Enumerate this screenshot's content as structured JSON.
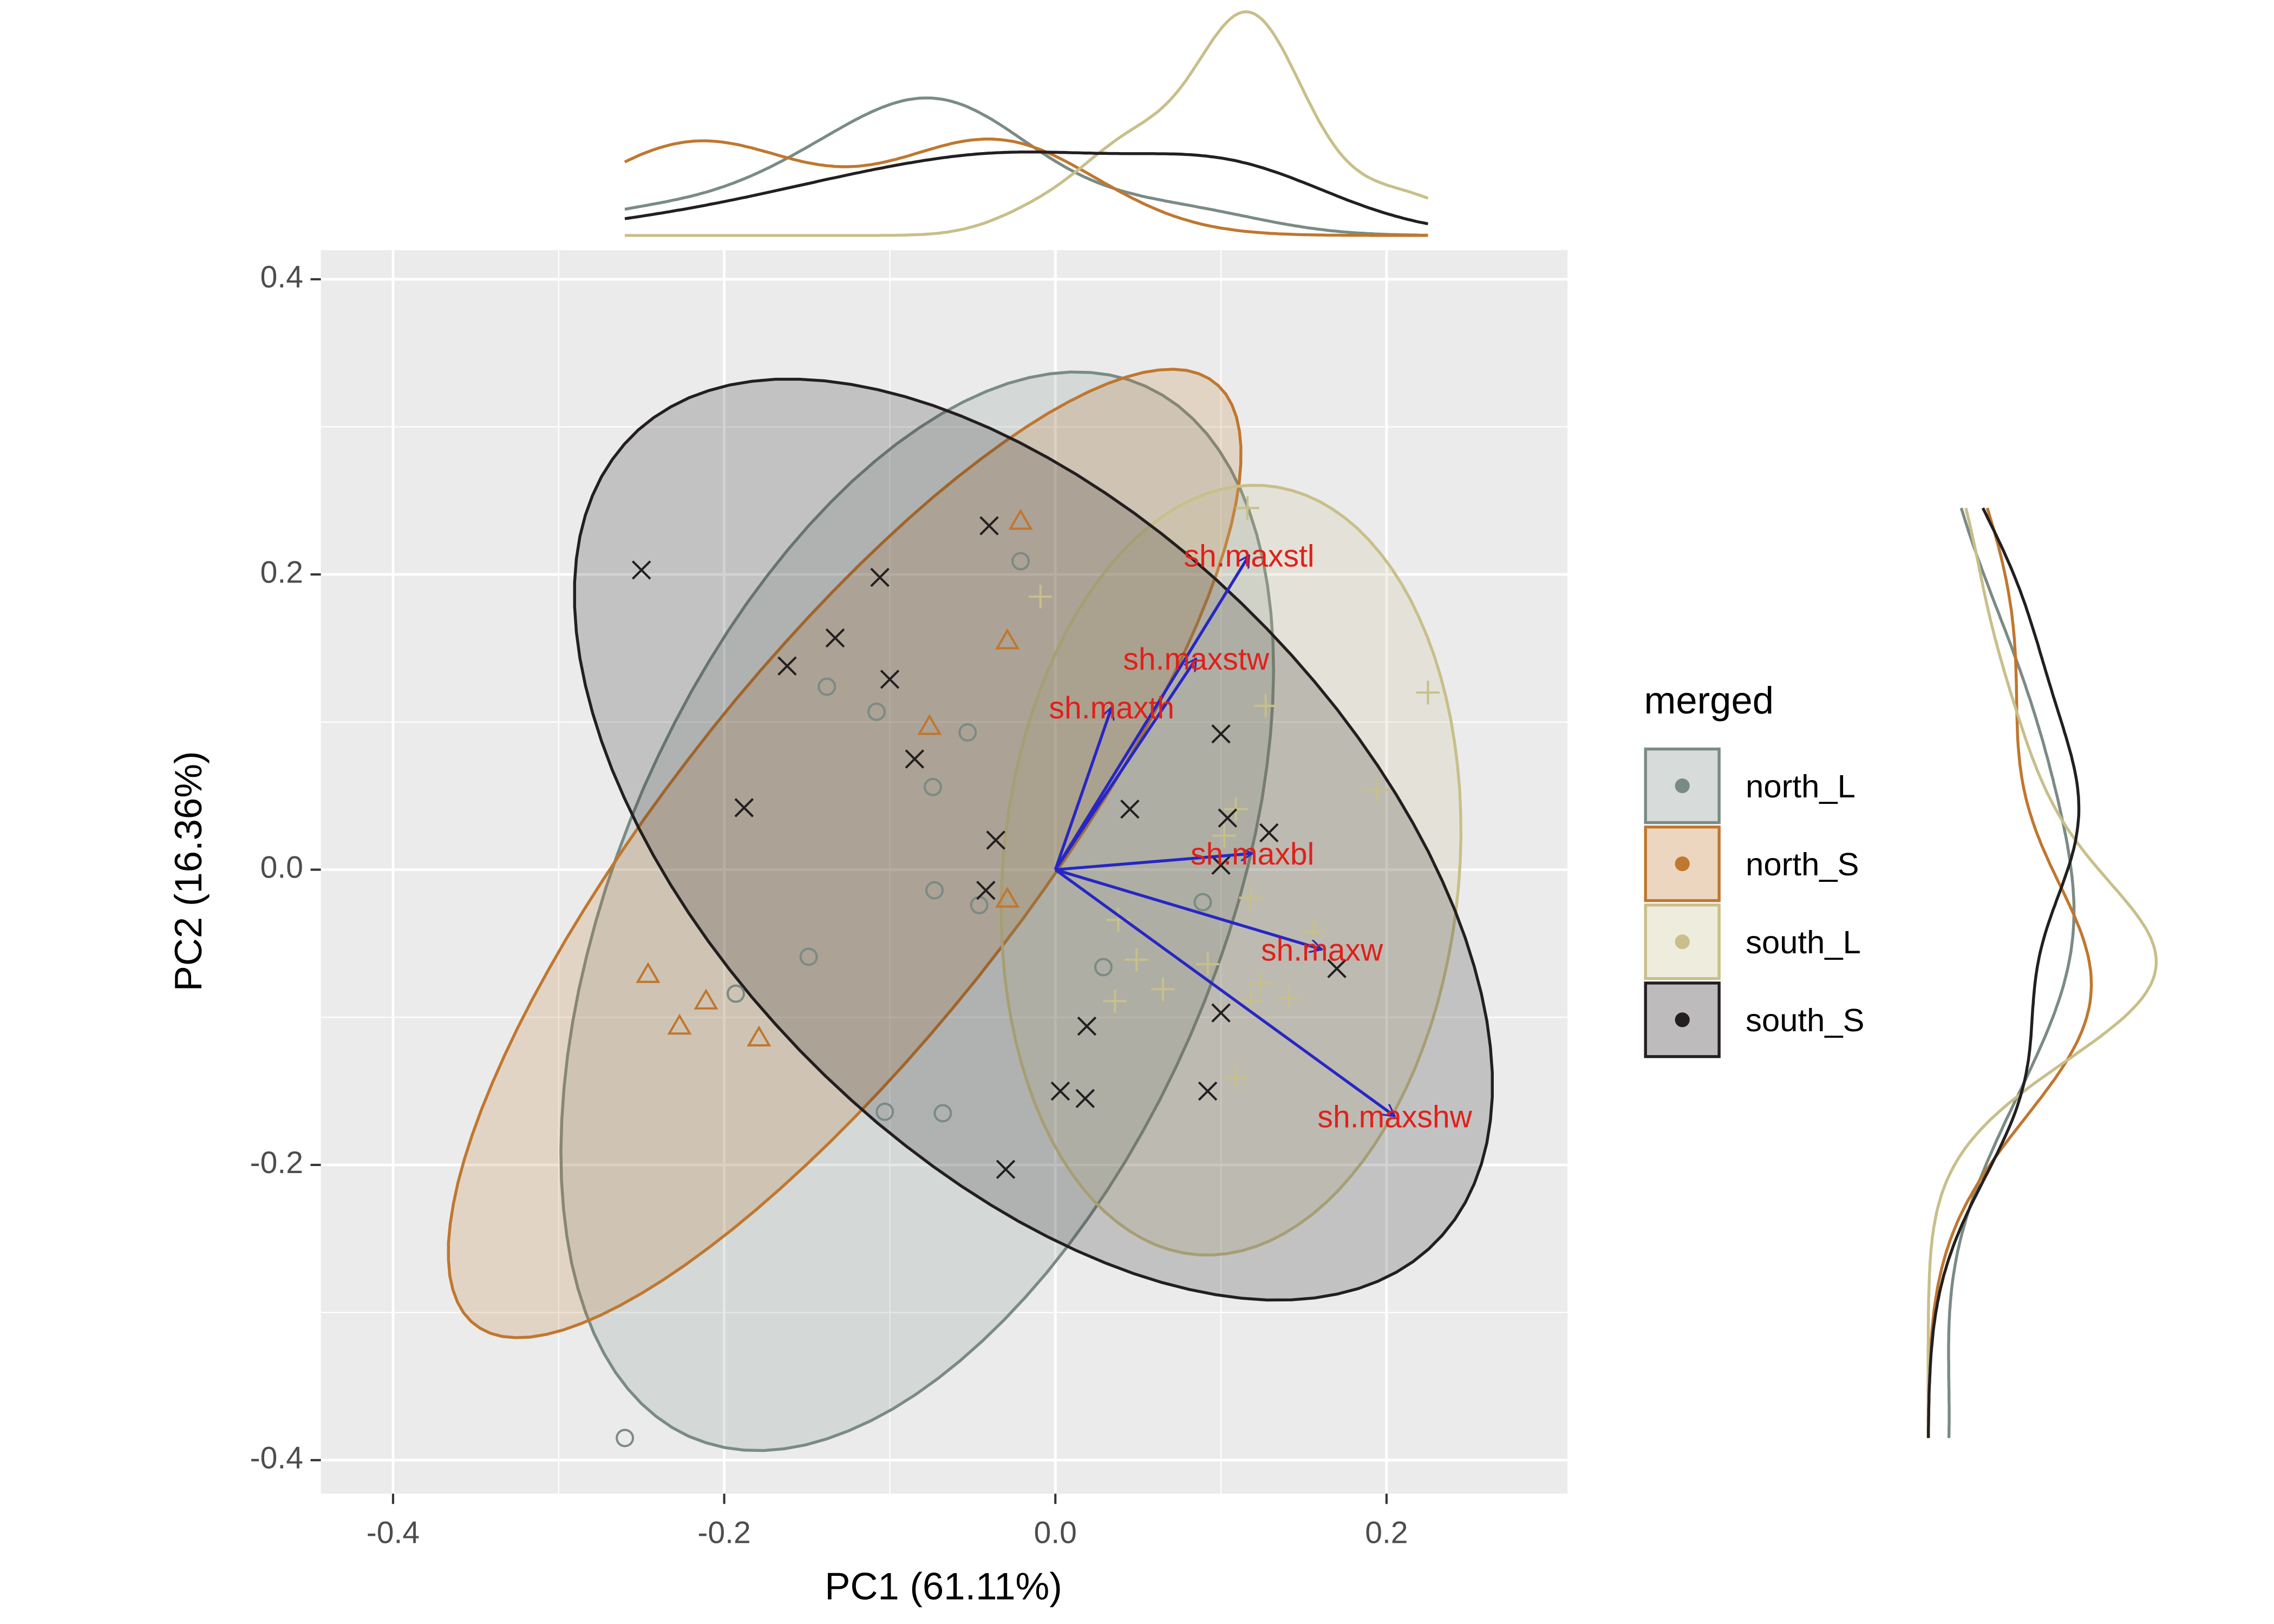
{
  "chart_data": {
    "type": "scatter",
    "x_label": "PC1 (61.11%)",
    "y_label": "PC2 (16.36%)",
    "xlim": [
      -0.4436,
      0.3093
    ],
    "ylim": [
      -0.4227,
      0.4197
    ],
    "xticks": [
      -0.4,
      -0.2,
      {
        "value": 0,
        "label": "0.0"
      },
      0.2
    ],
    "yticks": [
      -0.4,
      -0.2,
      {
        "value": 0,
        "label": "0.0"
      },
      0.2,
      0.4
    ],
    "grid": true,
    "ellipses": true,
    "marginal_density": true,
    "legend_title": "merged",
    "legend_position": "right",
    "series": [
      {
        "name": "north_L",
        "color": "#7a8b84",
        "marker": "circle",
        "x": [
          -0.021,
          -0.138,
          -0.108,
          -0.053,
          -0.074,
          -0.073,
          -0.046,
          -0.149,
          -0.193,
          0.029,
          -0.103,
          -0.068,
          -0.26,
          0.089
        ],
        "values": [
          0.209,
          0.124,
          0.107,
          0.093,
          0.056,
          -0.014,
          -0.024,
          -0.059,
          -0.084,
          -0.066,
          -0.164,
          -0.165,
          -0.385,
          -0.022
        ]
      },
      {
        "name": "north_S",
        "color": "#c0772f",
        "marker": "triangle",
        "x": [
          -0.021,
          -0.029,
          -0.076,
          -0.029,
          -0.246,
          -0.211,
          -0.227,
          -0.179
        ],
        "values": [
          0.236,
          0.155,
          0.097,
          -0.02,
          -0.071,
          -0.089,
          -0.106,
          -0.114
        ]
      },
      {
        "name": "south_L",
        "color": "#c8bf8a",
        "marker": "plus",
        "x": [
          0.116,
          -0.009,
          0.225,
          0.127,
          0.194,
          0.109,
          0.102,
          0.118,
          0.038,
          0.049,
          0.036,
          0.065,
          0.092,
          0.124,
          0.141,
          0.118,
          0.109,
          0.156
        ],
        "values": [
          0.245,
          0.185,
          0.12,
          0.111,
          0.054,
          0.041,
          0.023,
          -0.019,
          -0.034,
          -0.061,
          -0.089,
          -0.081,
          -0.064,
          -0.077,
          -0.087,
          -0.089,
          -0.141,
          -0.042
        ]
      },
      {
        "name": "south_S",
        "color": "#231f20",
        "marker": "cross",
        "x": [
          -0.25,
          -0.04,
          -0.106,
          -0.133,
          -0.162,
          -0.1,
          -0.085,
          -0.188,
          -0.036,
          -0.042,
          0.045,
          0.1,
          0.104,
          0.129,
          0.1,
          0.17,
          0.1,
          0.019,
          0.003,
          0.018,
          0.092,
          -0.03
        ],
        "values": [
          0.203,
          0.233,
          0.198,
          0.157,
          0.138,
          0.129,
          0.075,
          0.042,
          0.02,
          -0.014,
          0.041,
          0.092,
          0.035,
          0.025,
          0.003,
          -0.067,
          -0.097,
          -0.106,
          -0.15,
          -0.155,
          -0.15,
          -0.203
        ]
      }
    ],
    "loadings_color": "#2727c4",
    "loadings_label_color": "#e0201b",
    "loadings": [
      {
        "name": "sh.maxstl",
        "x": 0.117,
        "y": 0.213
      },
      {
        "name": "sh.maxstw",
        "x": 0.085,
        "y": 0.143
      },
      {
        "name": "sh.maxth",
        "x": 0.034,
        "y": 0.11
      },
      {
        "name": "sh.maxbl",
        "x": 0.119,
        "y": 0.011
      },
      {
        "name": "sh.maxw",
        "x": 0.161,
        "y": -0.054
      },
      {
        "name": "sh.maxshw",
        "x": 0.205,
        "y": -0.167
      }
    ]
  }
}
